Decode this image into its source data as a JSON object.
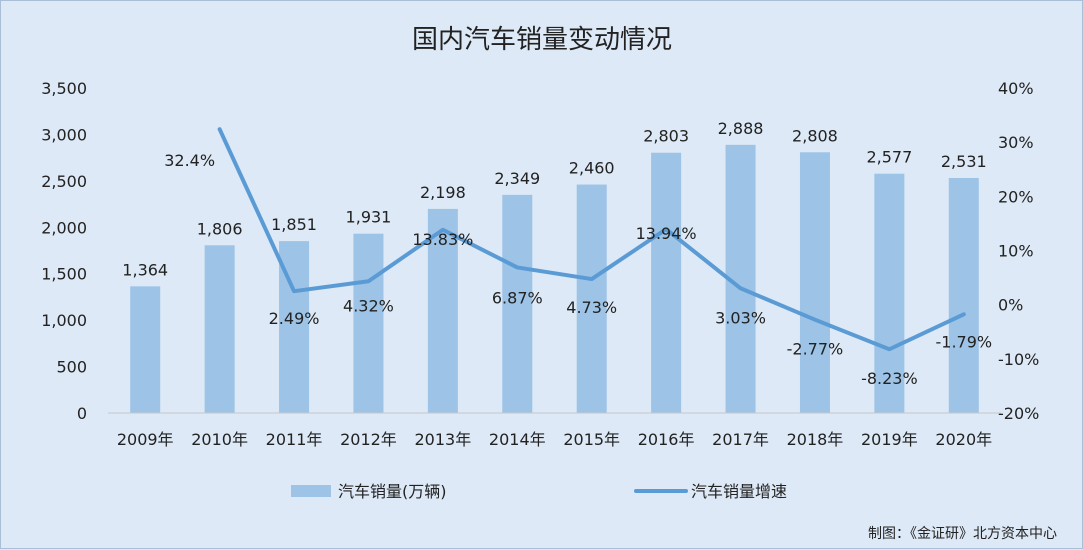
{
  "chart_data": {
    "type": "bar",
    "title": "国内汽车销量变动情况",
    "categories": [
      "2009年",
      "2010年",
      "2011年",
      "2012年",
      "2013年",
      "2014年",
      "2015年",
      "2016年",
      "2017年",
      "2018年",
      "2019年",
      "2020年"
    ],
    "series": [
      {
        "name": "汽车销量(万辆)",
        "type": "bar",
        "axis": "left",
        "values": [
          1364,
          1806,
          1851,
          1931,
          2198,
          2349,
          2460,
          2803,
          2888,
          2808,
          2577,
          2531
        ],
        "labels": [
          "1,364",
          "1,806",
          "1,851",
          "1,931",
          "2,198",
          "2,349",
          "2,460",
          "2,803",
          "2,888",
          "2,808",
          "2,577",
          "2,531"
        ],
        "color": "#9dc3e6"
      },
      {
        "name": "汽车销量增速",
        "type": "line",
        "axis": "right",
        "values": [
          null,
          32.4,
          2.49,
          4.32,
          13.83,
          6.87,
          4.73,
          13.94,
          3.03,
          -2.77,
          -8.23,
          -1.79
        ],
        "labels": [
          null,
          "32.4%",
          "2.49%",
          "4.32%",
          "13.83%",
          "6.87%",
          "4.73%",
          "13.94%",
          "3.03%",
          "-2.77%",
          "-8.23%",
          "-1.79%"
        ],
        "color": "#5b9bd5"
      }
    ],
    "y_left": {
      "ylim": [
        0,
        3500
      ],
      "ticks": [
        "0",
        "500",
        "1,000",
        "1,500",
        "2,000",
        "2,500",
        "3,000",
        "3,500"
      ]
    },
    "y_right": {
      "ylim": [
        -20,
        40
      ],
      "ticks": [
        "-20%",
        "-10%",
        "0%",
        "10%",
        "20%",
        "30%",
        "40%"
      ]
    },
    "legend_position": "bottom",
    "grid": false,
    "credit": "制图：《金证研》北方资本中心"
  }
}
